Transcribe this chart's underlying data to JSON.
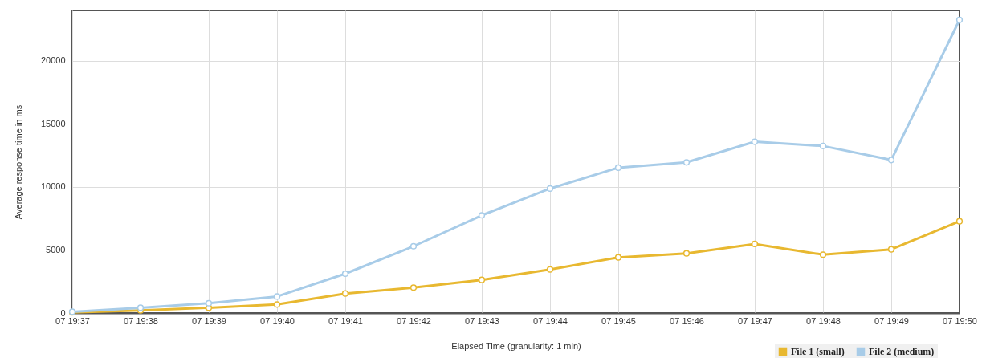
{
  "chart_data": {
    "type": "line",
    "xlabel": "Elapsed Time (granularity: 1 min)",
    "ylabel": "Average response time in ms",
    "categories": [
      "07 19:37",
      "07 19:38",
      "07 19:39",
      "07 19:40",
      "07 19:41",
      "07 19:42",
      "07 19:43",
      "07 19:44",
      "07 19:45",
      "07 19:46",
      "07 19:47",
      "07 19:48",
      "07 19:49",
      "07 19:50"
    ],
    "series": [
      {
        "name": "File 1 (small)",
        "color": "#e8b830",
        "values": [
          50,
          210,
          420,
          680,
          1550,
          2020,
          2630,
          3460,
          4410,
          4730,
          5480,
          4630,
          5050,
          7280
        ]
      },
      {
        "name": "File 2 (medium)",
        "color": "#a8cce8",
        "values": [
          100,
          420,
          780,
          1310,
          3120,
          5300,
          7750,
          9870,
          11530,
          11950,
          13590,
          13250,
          12140,
          23250
        ]
      }
    ],
    "ylim": [
      0,
      24000
    ],
    "yticks": [
      0,
      5000,
      10000,
      15000,
      20000
    ],
    "grid": true,
    "legend": "bottom right",
    "marker": "circle",
    "line_style": "solid"
  }
}
